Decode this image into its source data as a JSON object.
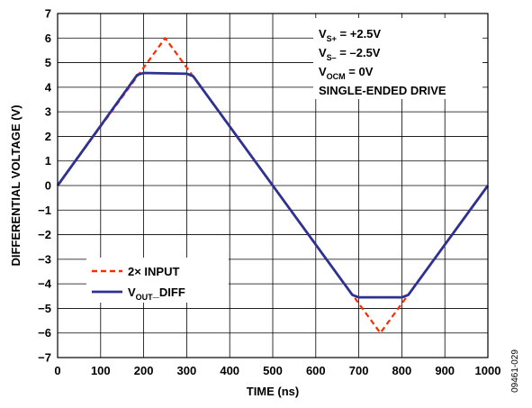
{
  "chart_data": {
    "type": "line",
    "xlabel": "TIME (ns)",
    "ylabel": "DIFFERENTIAL VOLTAGE (V)",
    "xlim": [
      0,
      1000
    ],
    "ylim": [
      -7,
      7
    ],
    "xticks": [
      0,
      100,
      200,
      300,
      400,
      500,
      600,
      700,
      800,
      900,
      1000
    ],
    "yticks": [
      7,
      6,
      5,
      4,
      3,
      2,
      1,
      0,
      -1,
      -2,
      -3,
      -4,
      -5,
      -6,
      -7
    ],
    "ytick_labels": [
      "7",
      "6",
      "5",
      "4",
      "3",
      "2",
      "1",
      "0",
      "−1",
      "−2",
      "−3",
      "−4",
      "−5",
      "−6",
      "−7"
    ],
    "grid": true,
    "series": [
      {
        "name": "2× INPUT",
        "color": "#ff2a00",
        "dash": "dashed",
        "x": [
          0,
          250,
          750,
          1000
        ],
        "y": [
          0,
          6,
          -6,
          0
        ]
      },
      {
        "name_main": "V",
        "name_sub": "OUT",
        "name_rest": "_DIFF",
        "color": "#2e3192",
        "dash": "solid",
        "x": [
          0,
          185,
          200,
          300,
          315,
          685,
          700,
          800,
          815,
          1000
        ],
        "y": [
          0,
          4.5,
          4.58,
          4.55,
          4.45,
          -4.45,
          -4.55,
          -4.55,
          -4.45,
          0
        ]
      }
    ],
    "legend_position": "bottom-left",
    "conditions": [
      {
        "main": "V",
        "sub": "S+",
        "rest": " = +2.5V"
      },
      {
        "main": "V",
        "sub": "S–",
        "rest": " = –2.5V"
      },
      {
        "main": "V",
        "sub": "OCM",
        "rest": " = 0V"
      },
      {
        "main": "SINGLE-ENDED DRIVE",
        "sub": "",
        "rest": ""
      }
    ],
    "figure_id": "09461-029"
  }
}
